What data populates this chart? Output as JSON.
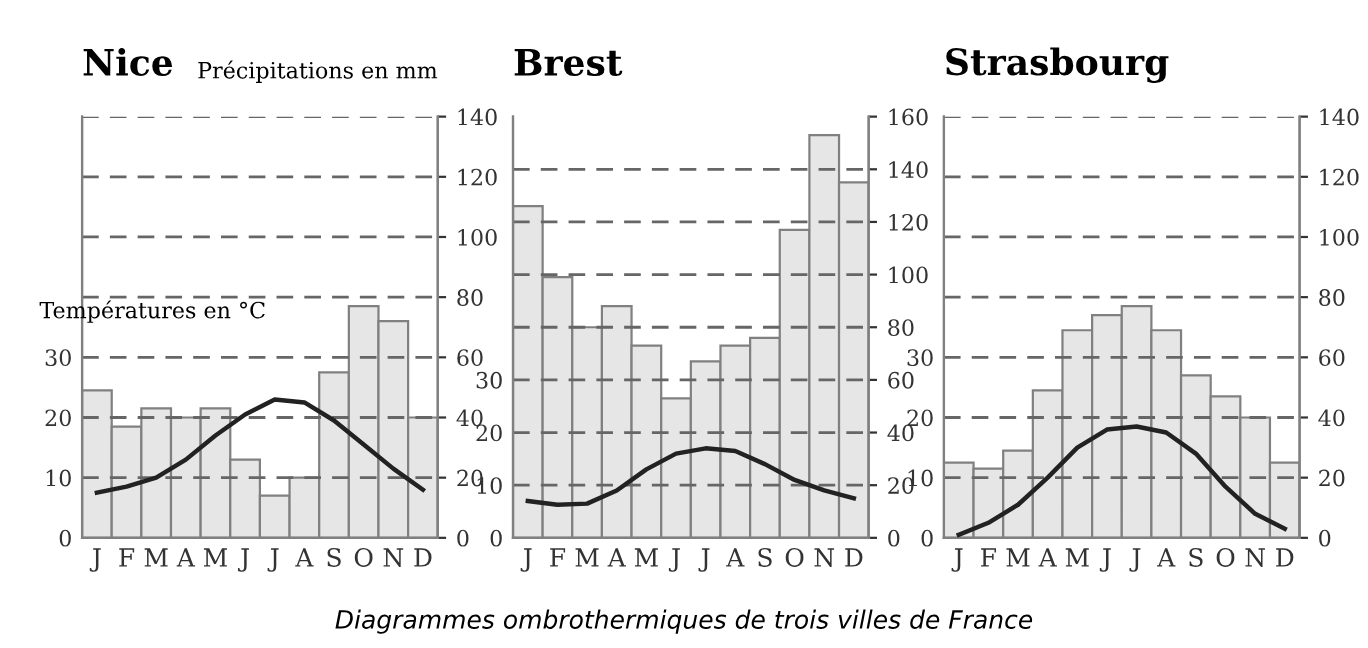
{
  "chart_data": [
    {
      "type": "bar",
      "title": "Nice",
      "ylabel": "Températures en °C",
      "y2label": "Précipitations en mm",
      "categories": [
        "J",
        "F",
        "M",
        "A",
        "M",
        "J",
        "J",
        "A",
        "S",
        "O",
        "N",
        "D"
      ],
      "series": [
        {
          "axis": "y2",
          "color": "#e6e6e6",
          "values": [
            49,
            37,
            43,
            40,
            43,
            26,
            14,
            20,
            55,
            77,
            72,
            40
          ]
        },
        {
          "type": "line",
          "axis": "y",
          "color": "#222222",
          "values": [
            7.5,
            8.5,
            10,
            13,
            17,
            20.5,
            23,
            22.5,
            19.5,
            15.5,
            11.5,
            8
          ]
        }
      ],
      "ylim": [
        0,
        70
      ],
      "yticks": [
        0,
        10,
        20,
        30
      ],
      "y2lim": [
        0,
        140
      ],
      "y2ticks": [
        0,
        20,
        40,
        60,
        80,
        100,
        120,
        140
      ],
      "grid": true,
      "annotations": [
        "Diagrammes ombrothermiques de trois villes de France"
      ]
    },
    {
      "type": "bar",
      "title": "Brest",
      "categories": [
        "J",
        "F",
        "M",
        "A",
        "M",
        "J",
        "J",
        "A",
        "S",
        "O",
        "N",
        "D"
      ],
      "series": [
        {
          "axis": "y2",
          "color": "#e6e6e6",
          "values": [
            126,
            99,
            80,
            88,
            73,
            53,
            67,
            73,
            76,
            117,
            153,
            135
          ]
        },
        {
          "type": "line",
          "axis": "y",
          "color": "#222222",
          "values": [
            7,
            6.3,
            6.5,
            9,
            13,
            16,
            17,
            16.5,
            14,
            11,
            9,
            7.5
          ]
        }
      ],
      "ylim": [
        0,
        80
      ],
      "yticks": [
        0,
        10,
        20,
        30
      ],
      "y2lim": [
        0,
        160
      ],
      "y2ticks": [
        0,
        20,
        40,
        60,
        80,
        100,
        120,
        140,
        160
      ],
      "grid": true
    },
    {
      "type": "bar",
      "title": "Strasbourg",
      "categories": [
        "J",
        "F",
        "M",
        "A",
        "M",
        "J",
        "J",
        "A",
        "S",
        "O",
        "N",
        "D"
      ],
      "series": [
        {
          "axis": "y2",
          "color": "#e6e6e6",
          "values": [
            25,
            23,
            29,
            49,
            69,
            74,
            77,
            69,
            54,
            47,
            40,
            25
          ]
        },
        {
          "type": "line",
          "axis": "y",
          "color": "#222222",
          "values": [
            0.5,
            2.5,
            5.5,
            10,
            15,
            18,
            18.5,
            17.5,
            14,
            8.5,
            4,
            1.5
          ]
        }
      ],
      "ylim": [
        0,
        70
      ],
      "yticks": [
        0,
        10,
        20,
        30
      ],
      "y2lim": [
        0,
        140
      ],
      "y2ticks": [
        0,
        20,
        40,
        60,
        80,
        100,
        120,
        140
      ],
      "grid": true
    }
  ]
}
